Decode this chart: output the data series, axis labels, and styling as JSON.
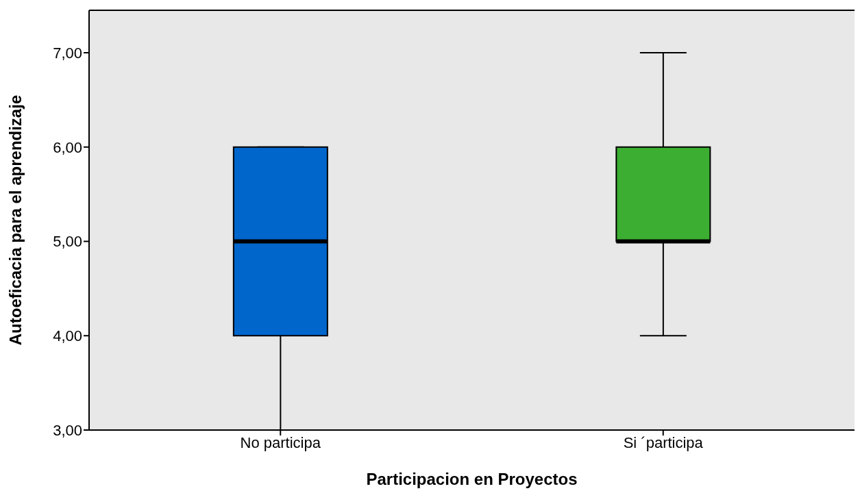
{
  "chart_data": {
    "type": "box",
    "xlabel": "Participacion en Proyectos",
    "ylabel": "Autoeficacia para el aprendizaje",
    "categories": [
      "No participa",
      "Si ´participa"
    ],
    "series": [
      {
        "colors": [
          "#0066cc",
          "#3cae32"
        ],
        "boxes": [
          {
            "low": 3,
            "q1": 4,
            "median": 5,
            "q3": 6,
            "high": 6
          },
          {
            "low": 4,
            "q1": 5,
            "median": 5,
            "q3": 6,
            "high": 7
          }
        ]
      }
    ],
    "ylim": [
      3,
      7.45
    ],
    "yticks": [
      {
        "value": 3,
        "label": "3,00"
      },
      {
        "value": 4,
        "label": "4,00"
      },
      {
        "value": 5,
        "label": "5,00"
      },
      {
        "value": 6,
        "label": "6,00"
      },
      {
        "value": 7,
        "label": "7,00"
      }
    ],
    "grid": false,
    "legend": false
  }
}
